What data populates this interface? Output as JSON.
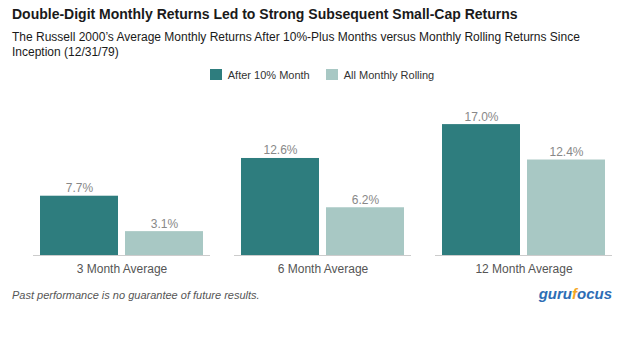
{
  "chart_data": {
    "type": "bar",
    "title": "Double-Digit Monthly Returns Led to Strong Subsequent Small-Cap Returns",
    "subtitle": "The Russell 2000’s Average Monthly Returns After 10%-Plus Months versus Monthly Rolling Returns Since\nInception (12/31/79)",
    "footnote": "Past performance is no guarantee of future results.",
    "annotations": [
      {
        "text": "guru",
        "color": "#2d6db5"
      },
      {
        "text": "f",
        "color": "#f5a623"
      },
      {
        "text": "ocus",
        "color": "#2d6db5"
      }
    ],
    "categories": [
      "3 Month Average",
      "6 Month Average",
      "12 Month Average"
    ],
    "series": [
      {
        "name": "After 10% Month",
        "color": "#2e7d7e",
        "values": [
          7.7,
          12.6,
          17.0
        ],
        "value_labels": [
          "7.7%",
          "12.6%",
          "17.0%"
        ]
      },
      {
        "name": "All Monthly Rolling",
        "color": "#a8c8c4",
        "values": [
          3.1,
          6.2,
          12.4
        ],
        "value_labels": [
          "3.1%",
          "6.2%",
          "12.4%"
        ]
      }
    ],
    "ylim": [
      0,
      20
    ],
    "grid": false,
    "legend": "top",
    "data_labels": true,
    "tick_labels": "x"
  }
}
